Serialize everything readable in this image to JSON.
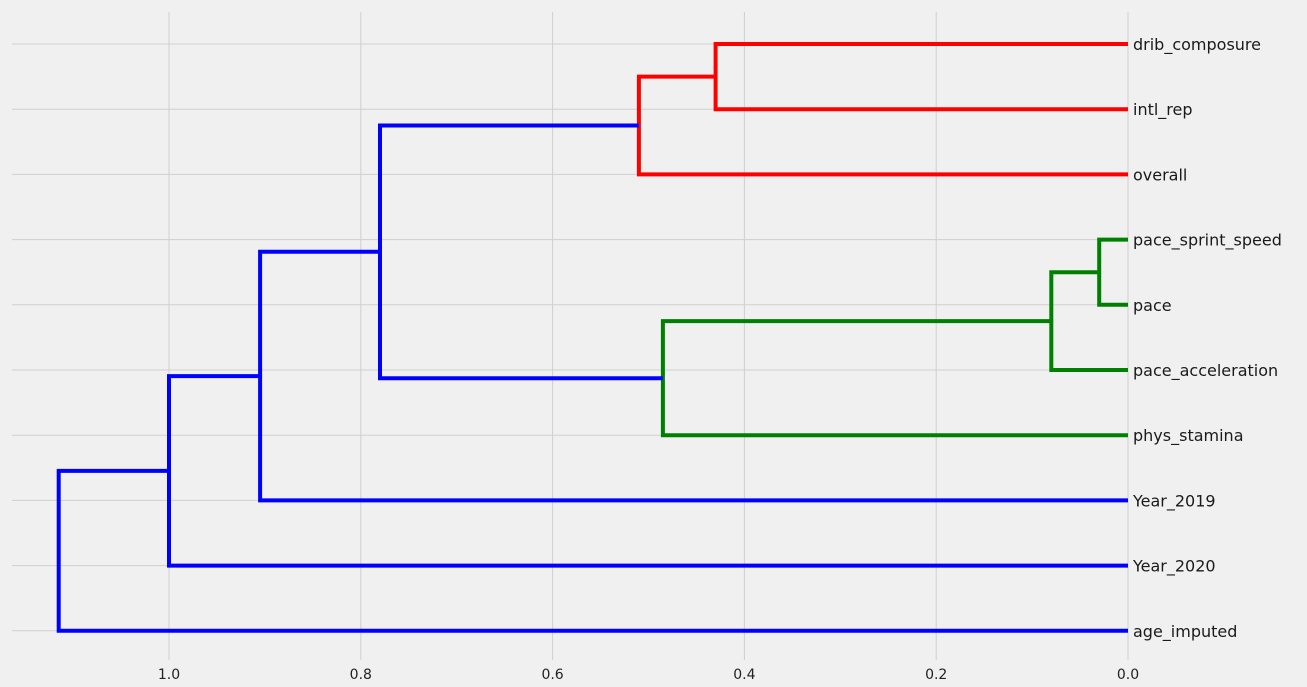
{
  "chart_data": {
    "type": "dendrogram",
    "orientation": "left",
    "xlim": [
      1.16,
      0.0
    ],
    "x_ticks": [
      1.0,
      0.8,
      0.6,
      0.4,
      0.2,
      0.0
    ],
    "x_tick_labels": [
      "1.0",
      "0.8",
      "0.6",
      "0.4",
      "0.2",
      "0.0"
    ],
    "grid": true,
    "colors": {
      "red": "#ff0000",
      "green": "#008000",
      "blue": "#0000ff",
      "grid": "#cfcfcf",
      "background": "#f0f0f0"
    },
    "leaves": [
      "drib_composure",
      "intl_rep",
      "overall",
      "pace_sprint_speed",
      "pace",
      "pace_acceleration",
      "phys_stamina",
      "Year_2019",
      "Year_2020",
      "age_imputed"
    ],
    "merges": [
      {
        "id": "m1",
        "children": [
          "drib_composure",
          "intl_rep"
        ],
        "height": 0.43,
        "color": "red"
      },
      {
        "id": "m2",
        "children": [
          "m1",
          "overall"
        ],
        "height": 0.51,
        "color": "red"
      },
      {
        "id": "m3",
        "children": [
          "pace_sprint_speed",
          "pace"
        ],
        "height": 0.03,
        "color": "green"
      },
      {
        "id": "m4",
        "children": [
          "m3",
          "pace_acceleration"
        ],
        "height": 0.08,
        "color": "green"
      },
      {
        "id": "m5",
        "children": [
          "m4",
          "phys_stamina"
        ],
        "height": 0.485,
        "color": "green"
      },
      {
        "id": "m6",
        "children": [
          "m2",
          "m5"
        ],
        "height": 0.78,
        "color": "blue"
      },
      {
        "id": "m7",
        "children": [
          "m6",
          "Year_2019"
        ],
        "height": 0.905,
        "color": "blue"
      },
      {
        "id": "m8",
        "children": [
          "m7",
          "Year_2020"
        ],
        "height": 1.0,
        "color": "blue"
      },
      {
        "id": "m9",
        "children": [
          "m8",
          "age_imputed"
        ],
        "height": 1.115,
        "color": "blue"
      }
    ]
  }
}
